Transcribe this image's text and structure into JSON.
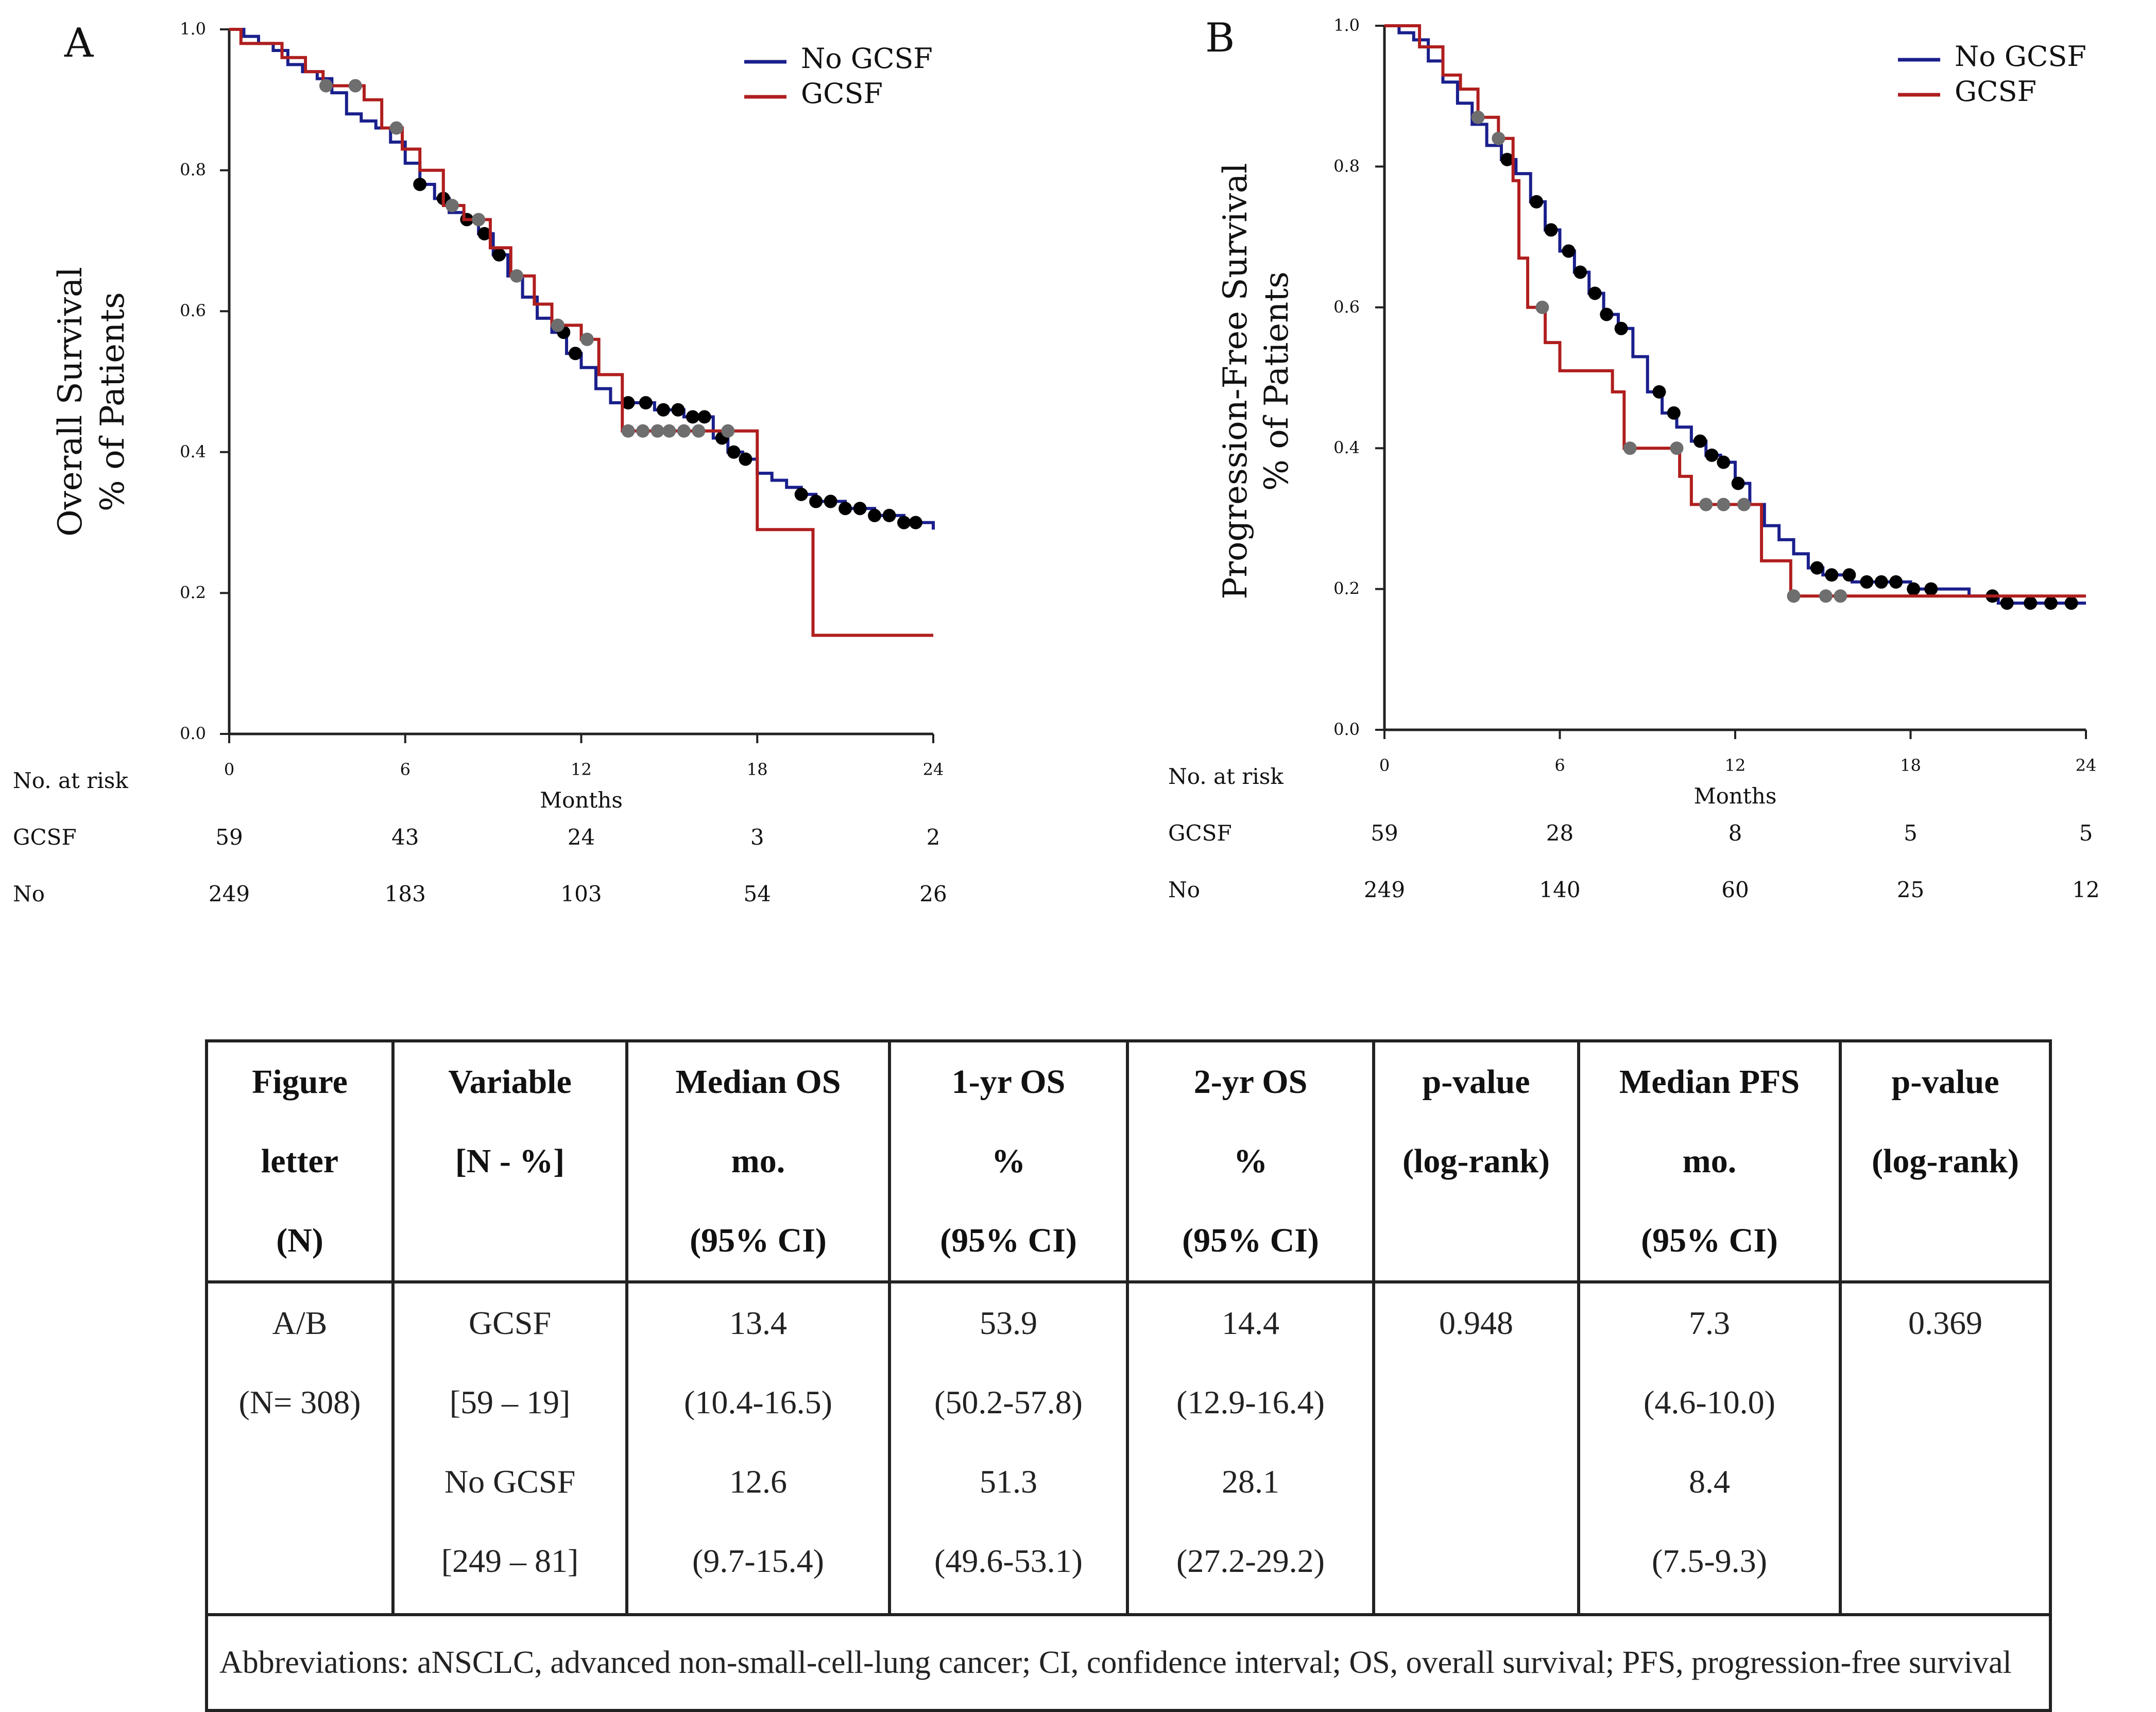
{
  "chart_data": [
    {
      "type": "line",
      "panel_letter": "A",
      "title": "",
      "ylabel_lines": [
        "Overall Survival",
        "% of Patients"
      ],
      "xlabel": "Months",
      "xlim": [
        0,
        24
      ],
      "ylim": [
        0,
        1.0
      ],
      "x_ticks": [
        0,
        6,
        12,
        18,
        24
      ],
      "y_ticks": [
        0.0,
        0.2,
        0.4,
        0.6,
        0.8,
        1.0
      ],
      "y_tick_labels": [
        "0.0",
        "0.2",
        "0.4",
        "0.6",
        "0.8",
        "1.0"
      ],
      "legend": {
        "position": "top-right",
        "entries": [
          "No GCSF",
          "GCSF"
        ]
      },
      "series": [
        {
          "name": "No GCSF",
          "color": "#1a1f8c",
          "steps": [
            [
              0,
              1.0
            ],
            [
              0.5,
              0.99
            ],
            [
              1.0,
              0.98
            ],
            [
              1.5,
              0.97
            ],
            [
              2.0,
              0.95
            ],
            [
              2.5,
              0.94
            ],
            [
              3.0,
              0.93
            ],
            [
              3.5,
              0.91
            ],
            [
              4.0,
              0.88
            ],
            [
              4.5,
              0.87
            ],
            [
              5.0,
              0.86
            ],
            [
              5.5,
              0.84
            ],
            [
              6.0,
              0.81
            ],
            [
              6.5,
              0.78
            ],
            [
              7.0,
              0.76
            ],
            [
              7.5,
              0.74
            ],
            [
              8.0,
              0.73
            ],
            [
              8.5,
              0.71
            ],
            [
              9.0,
              0.68
            ],
            [
              9.5,
              0.65
            ],
            [
              10.0,
              0.62
            ],
            [
              10.5,
              0.59
            ],
            [
              11.0,
              0.57
            ],
            [
              11.5,
              0.54
            ],
            [
              12.0,
              0.52
            ],
            [
              12.5,
              0.49
            ],
            [
              13.0,
              0.47
            ],
            [
              14.0,
              0.47
            ],
            [
              14.5,
              0.46
            ],
            [
              15.0,
              0.46
            ],
            [
              15.5,
              0.45
            ],
            [
              16.0,
              0.45
            ],
            [
              16.5,
              0.42
            ],
            [
              17.0,
              0.4
            ],
            [
              17.5,
              0.39
            ],
            [
              18.0,
              0.37
            ],
            [
              18.5,
              0.36
            ],
            [
              19.0,
              0.35
            ],
            [
              19.5,
              0.34
            ],
            [
              20.0,
              0.33
            ],
            [
              21.0,
              0.32
            ],
            [
              22.0,
              0.31
            ],
            [
              23.0,
              0.3
            ],
            [
              23.5,
              0.3
            ],
            [
              24.0,
              0.29
            ]
          ],
          "censor_x": [
            13.6,
            14.2,
            14.8,
            15.3,
            15.8,
            16.2,
            16.8,
            17.2,
            17.6,
            19.5,
            20.0,
            20.5,
            21.0,
            21.5,
            22.0,
            22.5,
            23.0,
            23.4,
            6.5,
            7.3,
            8.1,
            8.7,
            9.2,
            11.4,
            11.8
          ]
        },
        {
          "name": "GCSF",
          "color": "#b01e1e",
          "steps": [
            [
              0,
              1.0
            ],
            [
              0.4,
              0.98
            ],
            [
              1.8,
              0.96
            ],
            [
              2.6,
              0.94
            ],
            [
              3.2,
              0.92
            ],
            [
              4.6,
              0.9
            ],
            [
              5.2,
              0.86
            ],
            [
              5.9,
              0.83
            ],
            [
              6.5,
              0.8
            ],
            [
              7.3,
              0.75
            ],
            [
              8.0,
              0.73
            ],
            [
              8.9,
              0.69
            ],
            [
              9.6,
              0.65
            ],
            [
              10.4,
              0.61
            ],
            [
              11.0,
              0.58
            ],
            [
              12.0,
              0.56
            ],
            [
              12.6,
              0.51
            ],
            [
              13.4,
              0.43
            ],
            [
              17.2,
              0.43
            ],
            [
              18.0,
              0.29
            ],
            [
              19.8,
              0.29
            ],
            [
              19.9,
              0.14
            ],
            [
              24.0,
              0.14
            ]
          ],
          "censor_x": [
            3.3,
            4.3,
            5.7,
            7.6,
            8.5,
            9.8,
            11.2,
            12.2,
            13.6,
            14.1,
            14.6,
            15.0,
            15.5,
            16.0,
            17.0
          ]
        }
      ],
      "risk_table": {
        "header": "No. at risk",
        "rows": [
          {
            "label": "GCSF",
            "values": [
              "59",
              "43",
              "24",
              "3",
              "2"
            ]
          },
          {
            "label": "No",
            "values": [
              "249",
              "183",
              "103",
              "54",
              "26"
            ]
          }
        ]
      }
    },
    {
      "type": "line",
      "panel_letter": "B",
      "title": "",
      "ylabel_lines": [
        "Progression-Free Survival",
        "% of Patients"
      ],
      "xlabel": "Months",
      "xlim": [
        0,
        24
      ],
      "ylim": [
        0,
        1.0
      ],
      "x_ticks": [
        0,
        6,
        12,
        18,
        24
      ],
      "y_ticks": [
        0.0,
        0.2,
        0.4,
        0.6,
        0.8,
        1.0
      ],
      "y_tick_labels": [
        "0.0",
        "0.2",
        "0.4",
        "0.6",
        "0.8",
        "1.0"
      ],
      "legend": {
        "position": "top-right",
        "entries": [
          "No GCSF",
          "GCSF"
        ]
      },
      "series": [
        {
          "name": "No GCSF",
          "color": "#1a1f8c",
          "steps": [
            [
              0,
              1.0
            ],
            [
              0.5,
              0.99
            ],
            [
              1.0,
              0.98
            ],
            [
              1.5,
              0.95
            ],
            [
              2.0,
              0.92
            ],
            [
              2.5,
              0.89
            ],
            [
              3.0,
              0.86
            ],
            [
              3.5,
              0.83
            ],
            [
              4.0,
              0.81
            ],
            [
              4.5,
              0.79
            ],
            [
              5.0,
              0.75
            ],
            [
              5.5,
              0.71
            ],
            [
              6.0,
              0.68
            ],
            [
              6.5,
              0.65
            ],
            [
              7.0,
              0.62
            ],
            [
              7.5,
              0.59
            ],
            [
              8.0,
              0.57
            ],
            [
              8.5,
              0.53
            ],
            [
              9.0,
              0.48
            ],
            [
              9.5,
              0.45
            ],
            [
              10.0,
              0.43
            ],
            [
              10.5,
              0.41
            ],
            [
              11.0,
              0.39
            ],
            [
              11.5,
              0.38
            ],
            [
              12.0,
              0.35
            ],
            [
              12.5,
              0.32
            ],
            [
              13.0,
              0.29
            ],
            [
              13.5,
              0.27
            ],
            [
              14.0,
              0.25
            ],
            [
              14.5,
              0.23
            ],
            [
              15.0,
              0.22
            ],
            [
              16.0,
              0.21
            ],
            [
              17.0,
              0.21
            ],
            [
              18.0,
              0.2
            ],
            [
              19.0,
              0.2
            ],
            [
              20.0,
              0.19
            ],
            [
              21.0,
              0.18
            ],
            [
              24.0,
              0.18
            ]
          ],
          "censor_x": [
            4.2,
            5.2,
            5.7,
            6.3,
            6.7,
            7.2,
            7.6,
            8.1,
            9.4,
            9.9,
            10.8,
            11.2,
            11.6,
            12.1,
            14.8,
            15.3,
            15.9,
            16.5,
            17.0,
            17.5,
            18.1,
            18.7,
            20.8,
            21.3,
            22.1,
            22.8,
            23.5
          ]
        },
        {
          "name": "GCSF",
          "color": "#b01e1e",
          "steps": [
            [
              0,
              1.0
            ],
            [
              1.2,
              0.97
            ],
            [
              2.0,
              0.93
            ],
            [
              2.6,
              0.91
            ],
            [
              3.2,
              0.87
            ],
            [
              3.9,
              0.84
            ],
            [
              4.4,
              0.78
            ],
            [
              4.6,
              0.67
            ],
            [
              4.9,
              0.6
            ],
            [
              5.5,
              0.55
            ],
            [
              6.0,
              0.51
            ],
            [
              7.5,
              0.51
            ],
            [
              7.8,
              0.48
            ],
            [
              8.2,
              0.4
            ],
            [
              9.8,
              0.4
            ],
            [
              10.1,
              0.36
            ],
            [
              10.5,
              0.32
            ],
            [
              12.8,
              0.32
            ],
            [
              12.9,
              0.24
            ],
            [
              13.9,
              0.19
            ],
            [
              24.0,
              0.19
            ]
          ],
          "censor_x": [
            3.2,
            3.9,
            5.4,
            8.4,
            10.0,
            11.0,
            11.6,
            12.3,
            14.0,
            15.1,
            15.6
          ]
        }
      ],
      "risk_table": {
        "header": "No. at risk",
        "rows": [
          {
            "label": "GCSF",
            "values": [
              "59",
              "28",
              "8",
              "5",
              "5"
            ]
          },
          {
            "label": "No",
            "values": [
              "249",
              "140",
              "60",
              "25",
              "12"
            ]
          }
        ]
      }
    }
  ],
  "table": {
    "headers": [
      [
        "Figure",
        "letter",
        "(N)"
      ],
      [
        "Variable",
        "[N - %]"
      ],
      [
        "Median OS",
        "mo.",
        "(95% CI)"
      ],
      [
        "1-yr OS",
        "%",
        "(95% CI)"
      ],
      [
        "2-yr OS",
        "%",
        "(95% CI)"
      ],
      [
        "p-value",
        "(log-rank)"
      ],
      [
        "Median PFS",
        "mo.",
        "(95% CI)"
      ],
      [
        "p-value",
        "(log-rank)"
      ]
    ],
    "body": [
      [
        "A/B",
        "(N= 308)"
      ],
      [
        "GCSF",
        "[59 – 19]",
        "No GCSF",
        "[249 – 81]"
      ],
      [
        "13.4",
        "(10.4-16.5)",
        "12.6",
        "(9.7-15.4)"
      ],
      [
        "53.9",
        "(50.2-57.8)",
        "51.3",
        "(49.6-53.1)"
      ],
      [
        "14.4",
        "(12.9-16.4)",
        "28.1",
        "(27.2-29.2)"
      ],
      [
        "0.948"
      ],
      [
        "7.3",
        "(4.6-10.0)",
        "8.4",
        "(7.5-9.3)"
      ],
      [
        "0.369"
      ]
    ],
    "abbreviations": "Abbreviations: aNSCLC, advanced non-small-cell-lung cancer; CI, confidence interval; OS, overall survival; PFS, progression-free survival"
  }
}
